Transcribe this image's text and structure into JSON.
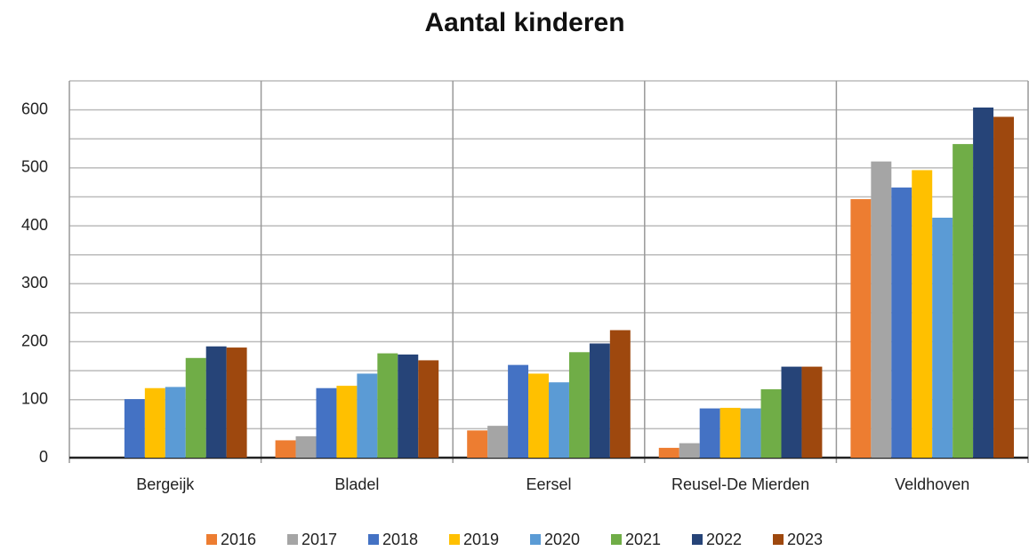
{
  "chart_data": {
    "type": "bar",
    "title": "Aantal kinderen",
    "categories": [
      "Bergeijk",
      "Bladel",
      "Eersel",
      "Reusel-De Mierden",
      "Veldhoven"
    ],
    "series": [
      {
        "name": "2016",
        "color": "#ed7d31",
        "values": [
          null,
          30,
          47,
          17,
          446
        ]
      },
      {
        "name": "2017",
        "color": "#a5a5a5",
        "values": [
          null,
          37,
          55,
          25,
          511
        ]
      },
      {
        "name": "2018",
        "color": "#4472c4",
        "values": [
          101,
          120,
          160,
          85,
          466
        ]
      },
      {
        "name": "2019",
        "color": "#ffc000",
        "values": [
          120,
          124,
          145,
          86,
          496
        ]
      },
      {
        "name": "2020",
        "color": "#5b9bd5",
        "values": [
          122,
          145,
          130,
          85,
          414
        ]
      },
      {
        "name": "2021",
        "color": "#70ad47",
        "values": [
          172,
          180,
          182,
          118,
          541
        ]
      },
      {
        "name": "2022",
        "color": "#264478",
        "values": [
          192,
          178,
          197,
          157,
          604
        ]
      },
      {
        "name": "2023",
        "color": "#9e480e",
        "values": [
          190,
          168,
          220,
          157,
          588
        ]
      }
    ],
    "ylim": [
      0,
      650
    ],
    "yticks": [
      0,
      100,
      200,
      300,
      400,
      500,
      600
    ],
    "minor_yticks": [
      50,
      150,
      250,
      350,
      450,
      550,
      650
    ],
    "grid": true,
    "legend": "bottom"
  }
}
